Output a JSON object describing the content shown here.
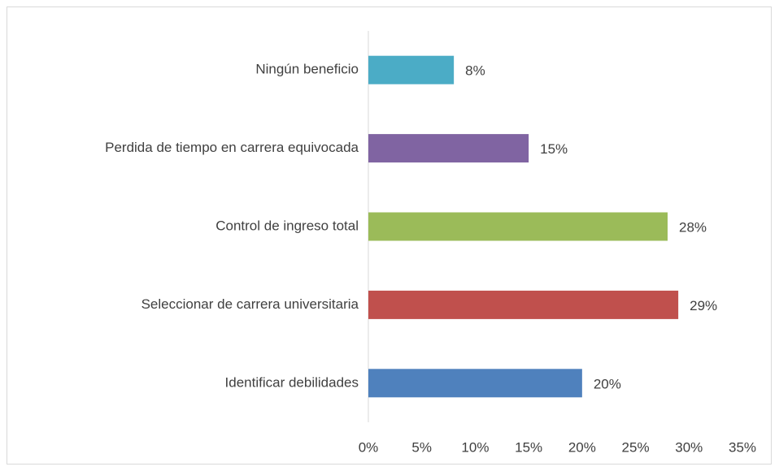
{
  "chart_data": {
    "type": "bar",
    "orientation": "horizontal",
    "categories": [
      "Ningún beneficio",
      "Perdida de tiempo en carrera equivocada",
      "Control de ingreso total",
      "Seleccionar de carrera universitaria",
      "Identificar debilidades"
    ],
    "values": [
      8,
      15,
      28,
      29,
      20
    ],
    "value_labels": [
      "8%",
      "15%",
      "28%",
      "29%",
      "20%"
    ],
    "colors": [
      "#4bacc6",
      "#8064a2",
      "#9bbb59",
      "#c0504d",
      "#4f81bd"
    ],
    "xlim": [
      0,
      35
    ],
    "xticks": [
      {
        "value": 0,
        "label": "0%"
      },
      {
        "value": 5,
        "label": "5%"
      },
      {
        "value": 10,
        "label": "10%"
      },
      {
        "value": 15,
        "label": "15%"
      },
      {
        "value": 20,
        "label": "20%"
      },
      {
        "value": 25,
        "label": "25%"
      },
      {
        "value": 30,
        "label": "30%"
      },
      {
        "value": 35,
        "label": "35%"
      }
    ],
    "grid": false
  }
}
